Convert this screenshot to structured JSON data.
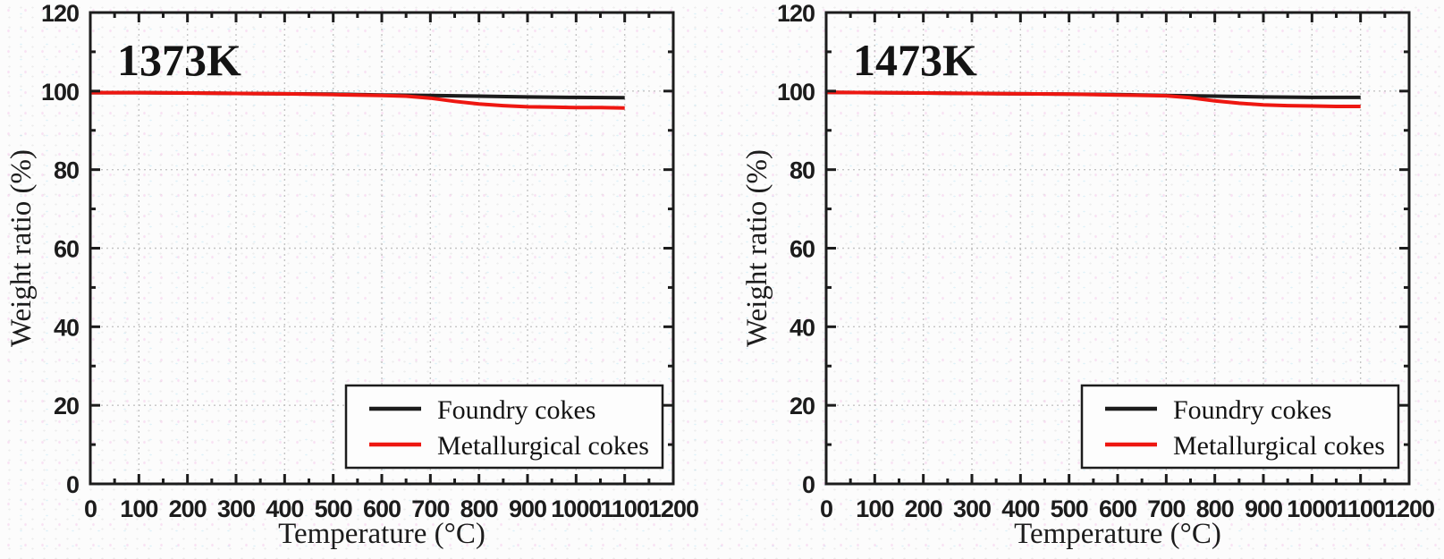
{
  "figure": {
    "background": "#fcfcfc",
    "frame_color": "#1c1c1c",
    "grid_color": "#c4c4c4",
    "legend_fill": "#fdfdfd"
  },
  "chart_data": [
    {
      "type": "line",
      "title": "1373K",
      "xlabel": "Temperature (°C)",
      "ylabel": "Weight ratio (%)",
      "xlim": [
        0,
        1200
      ],
      "ylim": [
        0,
        120
      ],
      "x_major_step": 100,
      "x_minor_step": 50,
      "y_major_step": 20,
      "y_minor_step": 10,
      "grid": "dotted",
      "legend_position": "bottom-right",
      "series": [
        {
          "name": "Foundry cokes",
          "color": "#1c1c1c",
          "points": [
            [
              0,
              99.6
            ],
            [
              100,
              99.6
            ],
            [
              200,
              99.5
            ],
            [
              300,
              99.4
            ],
            [
              400,
              99.3
            ],
            [
              500,
              99.2
            ],
            [
              600,
              99.0
            ],
            [
              700,
              98.9
            ],
            [
              800,
              98.7
            ],
            [
              900,
              98.5
            ],
            [
              1000,
              98.4
            ],
            [
              1100,
              98.3
            ]
          ]
        },
        {
          "name": "Metallurgical cokes",
          "color": "#ee1711",
          "points": [
            [
              0,
              99.6
            ],
            [
              100,
              99.6
            ],
            [
              200,
              99.5
            ],
            [
              300,
              99.4
            ],
            [
              400,
              99.3
            ],
            [
              500,
              99.1
            ],
            [
              600,
              98.9
            ],
            [
              650,
              98.7
            ],
            [
              700,
              98.2
            ],
            [
              750,
              97.4
            ],
            [
              800,
              96.7
            ],
            [
              850,
              96.3
            ],
            [
              900,
              96.0
            ],
            [
              950,
              95.9
            ],
            [
              1000,
              95.8
            ],
            [
              1050,
              95.8
            ],
            [
              1100,
              95.7
            ]
          ]
        }
      ]
    },
    {
      "type": "line",
      "title": "1473K",
      "xlabel": "Temperature (°C)",
      "ylabel": "Weight ratio (%)",
      "xlim": [
        0,
        1200
      ],
      "ylim": [
        0,
        120
      ],
      "x_major_step": 100,
      "x_minor_step": 50,
      "y_major_step": 20,
      "y_minor_step": 10,
      "grid": "dotted",
      "legend_position": "bottom-right",
      "series": [
        {
          "name": "Foundry cokes",
          "color": "#1c1c1c",
          "points": [
            [
              0,
              99.7
            ],
            [
              100,
              99.6
            ],
            [
              200,
              99.5
            ],
            [
              300,
              99.4
            ],
            [
              400,
              99.3
            ],
            [
              500,
              99.2
            ],
            [
              600,
              99.1
            ],
            [
              700,
              98.9
            ],
            [
              800,
              98.7
            ],
            [
              900,
              98.5
            ],
            [
              1000,
              98.4
            ],
            [
              1100,
              98.4
            ]
          ]
        },
        {
          "name": "Metallurgical cokes",
          "color": "#ee1711",
          "points": [
            [
              0,
              99.7
            ],
            [
              100,
              99.6
            ],
            [
              200,
              99.5
            ],
            [
              300,
              99.4
            ],
            [
              400,
              99.3
            ],
            [
              500,
              99.2
            ],
            [
              600,
              99.0
            ],
            [
              700,
              98.8
            ],
            [
              750,
              98.3
            ],
            [
              800,
              97.5
            ],
            [
              850,
              96.9
            ],
            [
              900,
              96.5
            ],
            [
              950,
              96.3
            ],
            [
              1000,
              96.2
            ],
            [
              1050,
              96.1
            ],
            [
              1100,
              96.1
            ]
          ]
        }
      ]
    }
  ]
}
